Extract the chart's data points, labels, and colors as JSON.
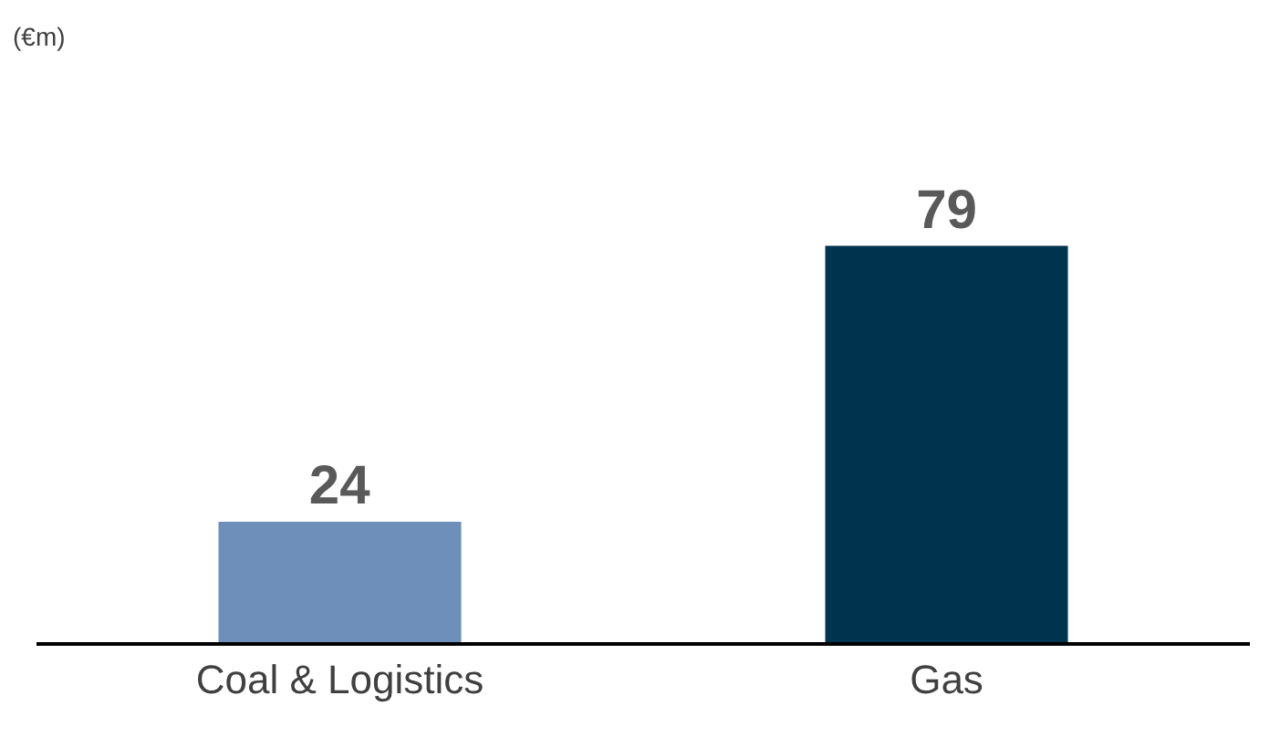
{
  "chart_data": {
    "type": "bar",
    "annotations": [
      "(€m)"
    ],
    "categories": [
      "Coal & Logistics",
      "Gas"
    ],
    "values": [
      24,
      79
    ],
    "colors": [
      "#6d8fba",
      "#00334e"
    ],
    "data_labels": true
  }
}
